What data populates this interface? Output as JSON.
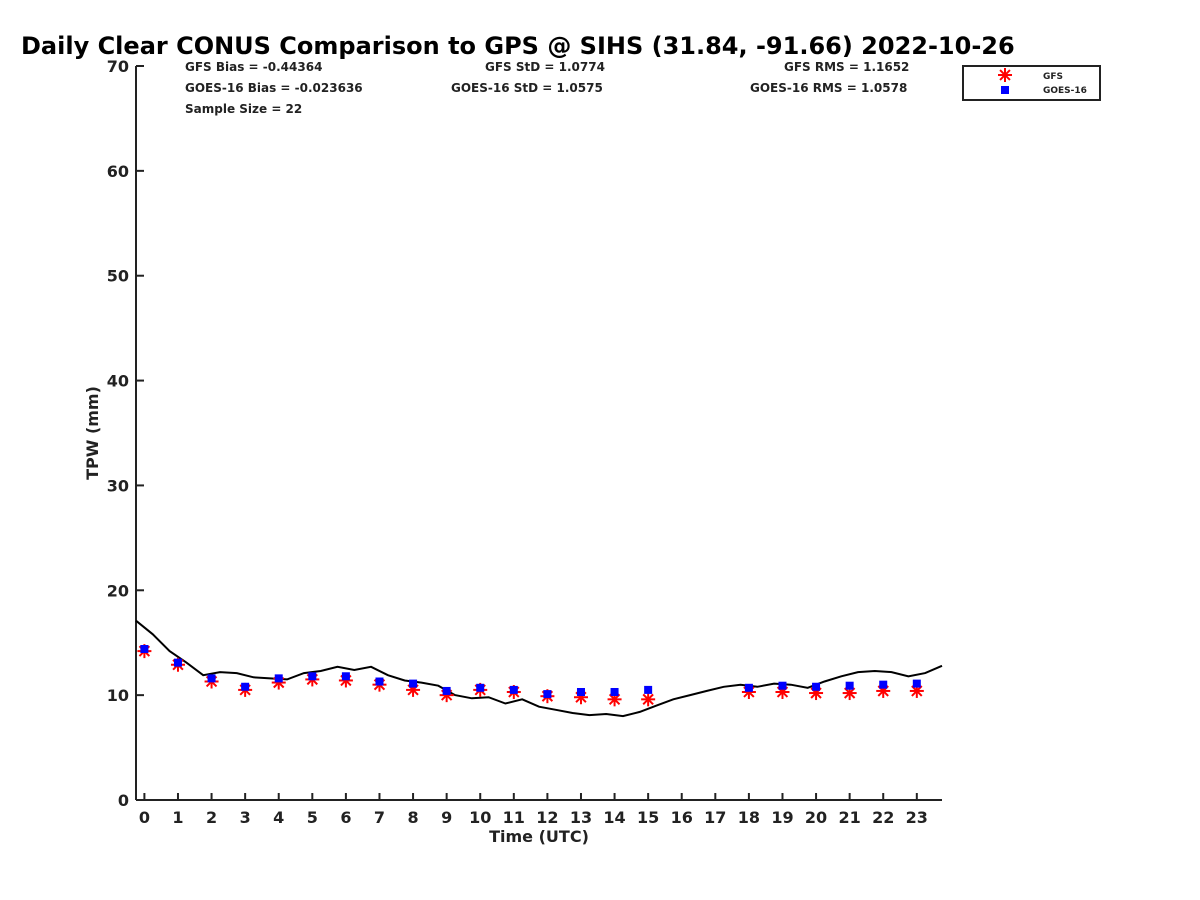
{
  "chart_data": {
    "type": "scatter",
    "title": "Daily Clear CONUS Comparison to GPS @ SIHS (31.84, -91.66) 2022-10-26",
    "xlabel": "Time (UTC)",
    "ylabel": "TPW (mm)",
    "ylim": [
      0,
      70
    ],
    "xlim": [
      -0.25,
      23.75
    ],
    "y_ticks": [
      "0",
      "10",
      "20",
      "30",
      "40",
      "50",
      "60",
      "70"
    ],
    "x_ticks": [
      "0",
      "1",
      "2",
      "3",
      "4",
      "5",
      "6",
      "7",
      "8",
      "9",
      "10",
      "11",
      "12",
      "13",
      "14",
      "15",
      "16",
      "17",
      "18",
      "19",
      "20",
      "21",
      "22",
      "23"
    ],
    "grid": false,
    "legend_position": "top-right",
    "stats": {
      "gfs_bias": "GFS Bias = -0.44364",
      "goes_bias": "GOES-16 Bias = -0.023636",
      "sample_size": "Sample Size = 22",
      "gfs_std": "GFS StD = 1.0774",
      "goes_std": "GOES-16 StD = 1.0575",
      "gfs_rms": "GFS RMS = 1.1652",
      "goes_rms": "GOES-16 RMS = 1.0578"
    },
    "series": [
      {
        "name": "GFS",
        "marker": "asterisk",
        "color": "#ff0000",
        "x": [
          0,
          1,
          2,
          3,
          4,
          5,
          6,
          7,
          8,
          9,
          10,
          11,
          12,
          13,
          14,
          15,
          18,
          19,
          20,
          21,
          22,
          23
        ],
        "y": [
          14.2,
          12.9,
          11.3,
          10.5,
          11.2,
          11.5,
          11.4,
          11.0,
          10.5,
          10.0,
          10.5,
          10.3,
          9.9,
          9.8,
          9.6,
          9.6,
          10.3,
          10.3,
          10.2,
          10.2,
          10.4,
          10.4
        ]
      },
      {
        "name": "GOES-16",
        "marker": "square",
        "color": "#0000ff",
        "x": [
          0,
          1,
          2,
          3,
          4,
          5,
          6,
          7,
          8,
          9,
          10,
          11,
          12,
          13,
          14,
          15,
          18,
          19,
          20,
          21,
          22,
          23
        ],
        "y": [
          14.4,
          13.1,
          11.6,
          10.8,
          11.6,
          11.8,
          11.8,
          11.3,
          11.1,
          10.4,
          10.7,
          10.5,
          10.1,
          10.3,
          10.3,
          10.5,
          10.7,
          10.9,
          10.8,
          10.9,
          11.0,
          11.1
        ]
      },
      {
        "marker": "line",
        "color": "#000000",
        "x": [
          -0.25,
          0.25,
          0.75,
          1.25,
          1.75,
          2.25,
          2.75,
          3.25,
          3.75,
          4.25,
          4.75,
          5.25,
          5.75,
          6.25,
          6.75,
          7.25,
          7.75,
          8.25,
          8.75,
          9.25,
          9.75,
          10.25,
          10.75,
          11.25,
          11.75,
          12.25,
          12.75,
          13.25,
          13.75,
          14.25,
          14.75,
          15.25,
          15.75,
          16.25,
          16.75,
          17.25,
          17.75,
          18.25,
          18.75,
          19.25,
          19.75,
          20.25,
          20.75,
          21.25,
          21.75,
          22.25,
          22.75,
          23.25,
          23.75
        ],
        "y": [
          17.1,
          15.8,
          14.2,
          13.1,
          11.9,
          12.2,
          12.1,
          11.7,
          11.6,
          11.5,
          12.1,
          12.3,
          12.7,
          12.4,
          12.7,
          11.9,
          11.4,
          11.2,
          10.9,
          10.0,
          9.7,
          9.8,
          9.2,
          9.6,
          8.9,
          8.6,
          8.3,
          8.1,
          8.2,
          8.0,
          8.4,
          9.0,
          9.6,
          10.0,
          10.4,
          10.8,
          11.0,
          10.8,
          11.1,
          11.0,
          10.7,
          11.3,
          11.8,
          12.2,
          12.3,
          12.2,
          11.8,
          12.1,
          12.8
        ]
      }
    ]
  }
}
